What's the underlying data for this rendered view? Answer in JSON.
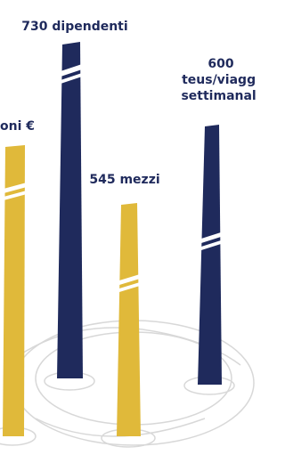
{
  "items": [
    {
      "label": [
        "oni €"
      ]
    },
    {
      "label": [
        "730 dipendenti"
      ]
    },
    {
      "label": [
        "545 mezzi"
      ]
    },
    {
      "label": [
        "600",
        "teus/viaggi",
        "settimanali"
      ]
    }
  ]
}
